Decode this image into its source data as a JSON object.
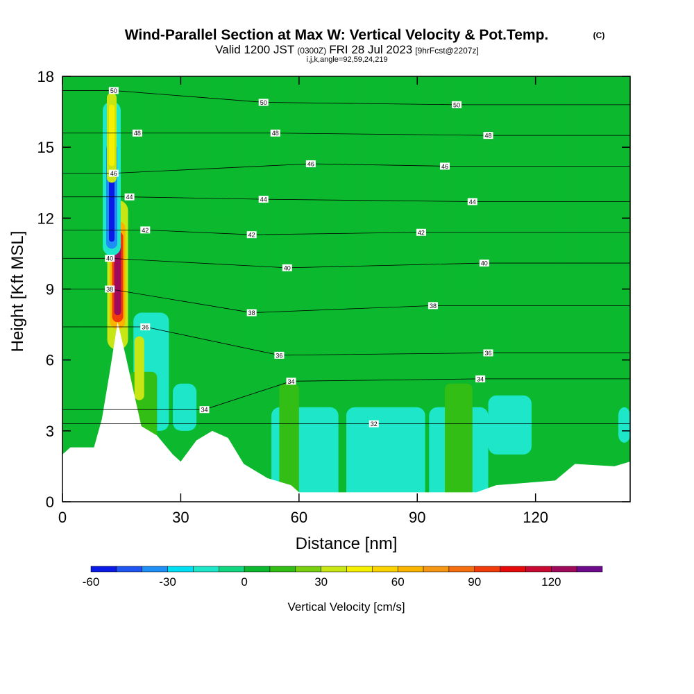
{
  "title": {
    "main": "Wind-Parallel Section at Max W: Vertical Velocity & Pot.Temp.",
    "copyright": "(C)",
    "valid_prefix": "Valid 1200 JST",
    "utc": "(0300Z)",
    "valid_date": "FRI 28 Jul 2023",
    "forecast": "[9hrFcst@2207z]",
    "indices": "i,j,k,angle=92,59,24,219"
  },
  "chart_data": {
    "type": "heatmap",
    "xlabel": "Distance [nm]",
    "ylabel": "Height [Kft MSL]",
    "xlim": [
      0,
      144
    ],
    "ylim": [
      0,
      18
    ],
    "x_ticks": [
      0,
      30,
      60,
      90,
      120
    ],
    "x_tick_labels": [
      "0",
      "30",
      "60",
      "90",
      "120"
    ],
    "y_ticks": [
      0,
      3,
      6,
      9,
      12,
      15,
      18
    ],
    "y_tick_labels": [
      "0",
      "3",
      "6",
      "9",
      "12",
      "15",
      "18"
    ],
    "colorbar": {
      "label": "Vertical Velocity [cm/s]",
      "tick_values": [
        -60,
        -30,
        0,
        30,
        60,
        90,
        120
      ],
      "tick_labels": [
        "-60",
        "-30",
        "0",
        "30",
        "60",
        "90",
        "120"
      ],
      "levels": [
        -60,
        -50,
        -40,
        -30,
        -20,
        -10,
        0,
        10,
        20,
        30,
        40,
        50,
        60,
        70,
        80,
        90,
        100,
        110,
        120,
        130,
        140
      ],
      "colors": [
        "#0a1ae6",
        "#1f55f0",
        "#1e90f5",
        "#00e0f5",
        "#1ee6c8",
        "#12d680",
        "#0bb82e",
        "#32be14",
        "#78d010",
        "#c8e614",
        "#f5f000",
        "#fad200",
        "#fab400",
        "#f59614",
        "#f56e0f",
        "#f03c0a",
        "#e60a0a",
        "#c80a32",
        "#a00a5a",
        "#6e0a8c"
      ]
    },
    "background_w_cms": 0,
    "updraft_core": {
      "x": 14,
      "y_range": [
        7.6,
        11
      ],
      "max_w_cms": 120
    },
    "downdraft_core": {
      "x": 12.5,
      "y_range": [
        11,
        14
      ],
      "min_w_cms": -60
    },
    "terrain_height_kft": {
      "x": [
        0,
        2,
        8,
        10,
        12,
        14,
        16,
        20,
        24,
        28,
        30,
        34,
        38,
        42,
        46,
        52,
        58,
        60,
        70,
        80,
        95,
        105,
        110,
        125,
        130,
        140,
        144
      ],
      "h": [
        2,
        2.3,
        2.3,
        3.5,
        5.5,
        7.6,
        6.2,
        3.2,
        2.8,
        2.0,
        1.7,
        2.6,
        3.0,
        2.7,
        1.6,
        1.0,
        0.7,
        0.4,
        0.4,
        0.4,
        0.4,
        0.4,
        0.7,
        0.9,
        1.6,
        1.5,
        1.7
      ]
    },
    "theta_contour_labels": [
      {
        "text": "50",
        "x": 13,
        "y": 17.4
      },
      {
        "text": "50",
        "x": 51,
        "y": 16.9
      },
      {
        "text": "50",
        "x": 100,
        "y": 16.8
      },
      {
        "text": "48",
        "x": 19,
        "y": 15.6
      },
      {
        "text": "48",
        "x": 54,
        "y": 15.6
      },
      {
        "text": "48",
        "x": 108,
        "y": 15.5
      },
      {
        "text": "46",
        "x": 13,
        "y": 13.9
      },
      {
        "text": "46",
        "x": 63,
        "y": 14.3
      },
      {
        "text": "46",
        "x": 97,
        "y": 14.2
      },
      {
        "text": "44",
        "x": 17,
        "y": 12.9
      },
      {
        "text": "44",
        "x": 51,
        "y": 12.8
      },
      {
        "text": "44",
        "x": 104,
        "y": 12.7
      },
      {
        "text": "42",
        "x": 21,
        "y": 11.5
      },
      {
        "text": "42",
        "x": 48,
        "y": 11.3
      },
      {
        "text": "42",
        "x": 91,
        "y": 11.4
      },
      {
        "text": "40",
        "x": 12,
        "y": 10.3
      },
      {
        "text": "40",
        "x": 57,
        "y": 9.9
      },
      {
        "text": "40",
        "x": 107,
        "y": 10.1
      },
      {
        "text": "38",
        "x": 12,
        "y": 9.0
      },
      {
        "text": "38",
        "x": 48,
        "y": 8.0
      },
      {
        "text": "38",
        "x": 94,
        "y": 8.3
      },
      {
        "text": "36",
        "x": 21,
        "y": 7.4
      },
      {
        "text": "36",
        "x": 55,
        "y": 6.2
      },
      {
        "text": "36",
        "x": 108,
        "y": 6.3
      },
      {
        "text": "34",
        "x": 36,
        "y": 3.9
      },
      {
        "text": "34",
        "x": 58,
        "y": 5.1
      },
      {
        "text": "34",
        "x": 106,
        "y": 5.2
      },
      {
        "text": "32",
        "x": 79,
        "y": 3.3
      }
    ]
  }
}
